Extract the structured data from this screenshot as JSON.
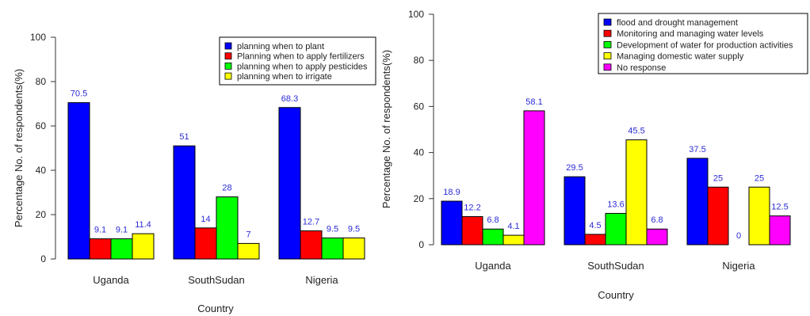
{
  "chart_data": [
    {
      "type": "bar",
      "categories": [
        "Uganda",
        "SouthSudan",
        "Nigeria"
      ],
      "series": [
        {
          "name": "planning when to plant",
          "color": "#0000ff",
          "values": [
            70.5,
            51,
            68.3
          ]
        },
        {
          "name": "Planning when to apply fertilizers",
          "color": "#ff0000",
          "values": [
            9.1,
            14,
            12.7
          ]
        },
        {
          "name": "planning when to apply pesticides",
          "color": "#00ff00",
          "values": [
            9.1,
            28,
            9.5
          ]
        },
        {
          "name": "planning when to irrigate",
          "color": "#ffff00",
          "values": [
            11.4,
            7,
            9.5
          ]
        }
      ],
      "xlabel": "Country",
      "ylabel": "Percentage No. of respondents(%)",
      "ylim": [
        0,
        100
      ],
      "yticks": [
        0,
        20,
        40,
        60,
        80,
        100
      ],
      "data_labels": [
        [
          "70.5",
          "51",
          "68.3"
        ],
        [
          "9.1",
          "14",
          "12.7"
        ],
        [
          "9.1",
          "28",
          "9.5"
        ],
        [
          "11.4",
          "7",
          "9.5"
        ]
      ],
      "legend_position": "top-right",
      "grid": false
    },
    {
      "type": "bar",
      "categories": [
        "Uganda",
        "SouthSudan",
        "Nigeria"
      ],
      "series": [
        {
          "name": "flood and drought management",
          "color": "#0000ff",
          "values": [
            18.9,
            29.5,
            37.5
          ]
        },
        {
          "name": "Monitoring and managing water levels",
          "color": "#ff0000",
          "values": [
            12.2,
            4.5,
            25
          ]
        },
        {
          "name": "Development of water for production activities",
          "color": "#00ff00",
          "values": [
            6.8,
            13.6,
            0
          ]
        },
        {
          "name": "Managing domestic water supply",
          "color": "#ffff00",
          "values": [
            4.1,
            45.5,
            25
          ]
        },
        {
          "name": "No response",
          "color": "#ff00ff",
          "values": [
            58.1,
            6.8,
            12.5
          ]
        }
      ],
      "xlabel": "Country",
      "ylabel": "Percentage No. of respondents(%)",
      "ylim": [
        0,
        100
      ],
      "yticks": [
        0,
        20,
        40,
        60,
        80,
        100
      ],
      "data_labels": [
        [
          "18.9",
          "29.5",
          "37.5"
        ],
        [
          "12.2",
          "4.5",
          "25"
        ],
        [
          "6.8",
          "13.6",
          "0"
        ],
        [
          "4.1",
          "45.5",
          "25"
        ],
        [
          "58.1",
          "6.8",
          "12.5"
        ]
      ],
      "legend_position": "top-right",
      "grid": false
    }
  ]
}
